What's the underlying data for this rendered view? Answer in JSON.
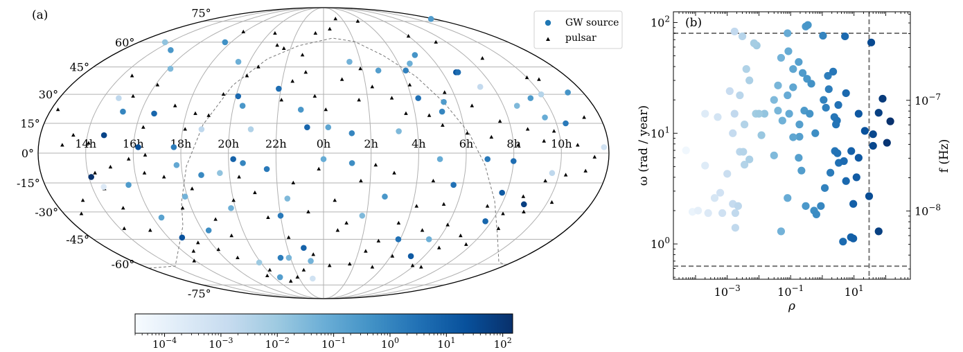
{
  "colors": {
    "cmap": [
      "#f7fbff",
      "#deebf7",
      "#c6dbef",
      "#9ecae1",
      "#6baed6",
      "#4292c6",
      "#2171b5",
      "#08519c",
      "#08306b"
    ],
    "grid": "#b0b0b0",
    "dashed": "#777777",
    "legend_dot": "#1f77b4"
  },
  "chart_data": [
    {
      "panel_label": "(a)",
      "type": "scatter",
      "projection": "mollweide",
      "longitude_ticks": [
        "14h",
        "16h",
        "18h",
        "20h",
        "22h",
        "0h",
        "2h",
        "4h",
        "6h",
        "8h",
        "10h"
      ],
      "latitude_ticks": [
        "75°",
        "60°",
        "45°",
        "30°",
        "15°",
        "0°",
        "-15°",
        "-30°",
        "-45°",
        "-60°",
        "-75°"
      ],
      "legend": [
        {
          "label": "GW source",
          "marker": "circle"
        },
        {
          "label": "pulsar",
          "marker": "triangle"
        }
      ],
      "colorbar": {
        "scale": "log",
        "range": [
          3e-05,
          150
        ],
        "ticks": [
          {
            "base": "10",
            "exp": "−4",
            "value": 0.0001
          },
          {
            "base": "10",
            "exp": "−3",
            "value": 0.001
          },
          {
            "base": "10",
            "exp": "−2",
            "value": 0.01
          },
          {
            "base": "10",
            "exp": "−1",
            "value": 0.1
          },
          {
            "base": "10",
            "exp": "0",
            "value": 1
          },
          {
            "base": "10",
            "exp": "1",
            "value": 10
          },
          {
            "base": "10",
            "exp": "2",
            "value": 100
          }
        ]
      },
      "gw_sources": [
        [
          11.7,
          77,
          -0.6
        ],
        [
          13.7,
          60,
          -1.8
        ],
        [
          14.9,
          55,
          -0.5
        ],
        [
          16.1,
          44,
          -1.5
        ],
        [
          17.6,
          60,
          -0.3
        ],
        [
          19.4,
          48,
          -1.2
        ],
        [
          21.9,
          33,
          0.6
        ],
        [
          1.4,
          48,
          -1.3
        ],
        [
          2.8,
          43,
          -0.7
        ],
        [
          4.2,
          43,
          0.1
        ],
        [
          4.6,
          47,
          -1.2
        ],
        [
          5.2,
          52,
          -0.4
        ],
        [
          6.7,
          42,
          1.2
        ],
        [
          7.4,
          34,
          -2.8
        ],
        [
          8.6,
          24,
          -1.5
        ],
        [
          9.4,
          28,
          -0.6
        ],
        [
          9.6,
          18,
          -1.1
        ],
        [
          10.4,
          15,
          0.3
        ],
        [
          11.8,
          3,
          -3.2
        ],
        [
          14.7,
          28,
          -2.7
        ],
        [
          15.2,
          21,
          0.0
        ],
        [
          16.6,
          20,
          0.8
        ],
        [
          16.2,
          3,
          1.4
        ],
        [
          15.6,
          -16,
          -0.6
        ],
        [
          14.1,
          -12,
          2.1
        ],
        [
          14.5,
          -17,
          -3.6
        ],
        [
          14.7,
          9,
          1.7
        ],
        [
          17.7,
          3,
          0.2
        ],
        [
          18.8,
          12,
          -2.7
        ],
        [
          20.1,
          29,
          0.7
        ],
        [
          20.4,
          24,
          -0.5
        ],
        [
          20.9,
          12,
          -2.4
        ],
        [
          23.0,
          22,
          -0.5
        ],
        [
          23.3,
          13,
          0.8
        ],
        [
          0.2,
          13,
          -0.9
        ],
        [
          1.2,
          10,
          0.0
        ],
        [
          3.2,
          11,
          -1.5
        ],
        [
          4.3,
          28,
          0.5
        ],
        [
          5.2,
          21,
          0.0
        ],
        [
          5.4,
          26,
          -0.6
        ],
        [
          4.9,
          -3,
          -1.1
        ],
        [
          5.6,
          -16,
          0.5
        ],
        [
          6.9,
          -3,
          0.3
        ],
        [
          8.0,
          -4,
          0.6
        ],
        [
          7.8,
          -20,
          1.1
        ],
        [
          9.0,
          -26,
          1.8
        ],
        [
          7.7,
          -35,
          0.8
        ],
        [
          5.5,
          -45,
          -1.2
        ],
        [
          3.9,
          -45,
          0.5
        ],
        [
          5.2,
          -55,
          1.1
        ],
        [
          2.7,
          -22,
          -0.5
        ],
        [
          1.2,
          -5,
          -0.2
        ],
        [
          0.0,
          -3,
          -1.1
        ],
        [
          22.4,
          -23,
          -1.5
        ],
        [
          22.0,
          -32,
          0.3
        ],
        [
          21.4,
          -56,
          0.2
        ],
        [
          21.9,
          -56,
          -1.4
        ],
        [
          22.9,
          -50,
          0.9
        ],
        [
          23.2,
          -58,
          -1.3
        ],
        [
          23.1,
          -70,
          -3.2
        ],
        [
          20.5,
          -69,
          -0.7
        ],
        [
          19.9,
          -59,
          -2.0
        ],
        [
          18.3,
          -40,
          -0.2
        ],
        [
          17.9,
          -22,
          -1.3
        ],
        [
          17.8,
          -6,
          -1.0
        ],
        [
          19.6,
          -10,
          -1.8
        ],
        [
          20.2,
          -3,
          0.9
        ],
        [
          20.6,
          -5,
          0.0
        ],
        [
          21.6,
          -8,
          0.3
        ],
        [
          18.8,
          -11,
          -0.1
        ],
        [
          16.4,
          -33,
          -0.8
        ],
        [
          16.7,
          -44,
          1.3
        ],
        [
          19.8,
          -28,
          -1.2
        ],
        [
          1.8,
          -32,
          -1.5
        ],
        [
          6.8,
          42,
          0.6
        ],
        [
          10.0,
          30,
          -2.5
        ],
        [
          11.3,
          31,
          -0.4
        ],
        [
          9.7,
          -10,
          -2.7
        ]
      ],
      "pulsars": [
        [
          17.9,
          67
        ],
        [
          20.4,
          66
        ],
        [
          23.4,
          66
        ],
        [
          0.5,
          69
        ],
        [
          1.3,
          77
        ],
        [
          3.4,
          75
        ],
        [
          6.0,
          64
        ],
        [
          7.3,
          60
        ],
        [
          8.8,
          50
        ],
        [
          10.0,
          39
        ],
        [
          10.5,
          38
        ],
        [
          11.3,
          18
        ],
        [
          12.3,
          22
        ],
        [
          13.0,
          4
        ],
        [
          13.4,
          9
        ],
        [
          14.1,
          5
        ],
        [
          15.3,
          29
        ],
        [
          16.3,
          13
        ],
        [
          17.4,
          24
        ],
        [
          18.1,
          12
        ],
        [
          19.0,
          19
        ],
        [
          19.4,
          30
        ],
        [
          20.2,
          40
        ],
        [
          20.6,
          45
        ],
        [
          21.1,
          58
        ],
        [
          21.6,
          56
        ],
        [
          22.1,
          27
        ],
        [
          22.5,
          37
        ],
        [
          23.1,
          42
        ],
        [
          23.6,
          29
        ],
        [
          0.1,
          22
        ],
        [
          0.9,
          38
        ],
        [
          1.6,
          27
        ],
        [
          2.3,
          34
        ],
        [
          3.1,
          28
        ],
        [
          3.6,
          20
        ],
        [
          4.1,
          35
        ],
        [
          4.6,
          19
        ],
        [
          5.1,
          14
        ],
        [
          5.6,
          31
        ],
        [
          6.1,
          10
        ],
        [
          6.6,
          24
        ],
        [
          7.1,
          8
        ],
        [
          7.6,
          16
        ],
        [
          8.2,
          4
        ],
        [
          8.7,
          12
        ],
        [
          9.3,
          6
        ],
        [
          9.8,
          11
        ],
        [
          10.7,
          4
        ],
        [
          11.4,
          -2
        ],
        [
          11.1,
          -9
        ],
        [
          10.3,
          -11
        ],
        [
          9.5,
          -14
        ],
        [
          8.8,
          -22
        ],
        [
          8.3,
          -31
        ],
        [
          7.4,
          -27
        ],
        [
          7.0,
          -43
        ],
        [
          6.4,
          -50
        ],
        [
          6.0,
          -37
        ],
        [
          5.4,
          -26
        ],
        [
          4.7,
          -14
        ],
        [
          4.2,
          -27
        ],
        [
          3.6,
          -36
        ],
        [
          2.9,
          -46
        ],
        [
          2.4,
          -52
        ],
        [
          1.7,
          -60
        ],
        [
          0.4,
          -61
        ],
        [
          23.4,
          -54
        ],
        [
          22.6,
          -64
        ],
        [
          21.9,
          -69
        ],
        [
          21.1,
          -72
        ],
        [
          20.2,
          -64
        ],
        [
          19.6,
          -68
        ],
        [
          18.8,
          -56
        ],
        [
          18.1,
          -51
        ],
        [
          17.3,
          -47
        ],
        [
          16.6,
          -52
        ],
        [
          15.9,
          -58
        ],
        [
          15.4,
          -40
        ],
        [
          14.9,
          -28
        ],
        [
          14.5,
          -18
        ],
        [
          14.3,
          -10
        ],
        [
          15.0,
          -7
        ],
        [
          15.8,
          -3
        ],
        [
          16.4,
          -10
        ],
        [
          17.2,
          -12
        ],
        [
          17.6,
          -28
        ],
        [
          18.3,
          -18
        ],
        [
          18.9,
          -34
        ],
        [
          19.3,
          -43
        ],
        [
          20.0,
          -24
        ],
        [
          20.4,
          -12
        ],
        [
          21.0,
          -20
        ],
        [
          21.4,
          -33
        ],
        [
          22.2,
          -44
        ],
        [
          22.7,
          -15
        ],
        [
          23.3,
          -30
        ],
        [
          23.8,
          -8
        ],
        [
          0.5,
          -24
        ],
        [
          1.1,
          -36
        ],
        [
          1.6,
          -14
        ],
        [
          2.2,
          -6
        ],
        [
          3.0,
          -10
        ],
        [
          3.3,
          -62
        ],
        [
          4.1,
          -55
        ],
        [
          4.9,
          -40
        ],
        [
          5.9,
          -61
        ],
        [
          6.6,
          -62
        ],
        [
          7.7,
          -48
        ],
        [
          8.6,
          -39
        ],
        [
          9.2,
          -30
        ],
        [
          10.2,
          -25
        ],
        [
          16.5,
          -1
        ],
        [
          14.2,
          -39
        ],
        [
          12.8,
          -31
        ],
        [
          13.3,
          -24
        ],
        [
          14.5,
          40
        ],
        [
          16.1,
          35
        ],
        [
          18.4,
          20
        ],
        [
          0.7,
          -40
        ],
        [
          22.8,
          52
        ],
        [
          1.9,
          44
        ]
      ]
    },
    {
      "panel_label": "(b)",
      "type": "scatter",
      "xlabel": "ρ",
      "ylabel": "ω (rad / year)",
      "y2label": "f (Hz)",
      "xscale": "log",
      "yscale": "log",
      "xlim": [
        2e-05,
        600
      ],
      "ylim": [
        0.48,
        125
      ],
      "xticks": [
        {
          "base": "10",
          "exp": "−3",
          "value": 0.001
        },
        {
          "base": "10",
          "exp": "−1",
          "value": 0.1
        },
        {
          "base": "10",
          "exp": "1",
          "value": 10
        }
      ],
      "yticks": [
        {
          "base": "10",
          "exp": "0",
          "value": 1
        },
        {
          "base": "10",
          "exp": "1",
          "value": 10
        },
        {
          "base": "10",
          "exp": "2",
          "value": 100
        }
      ],
      "y2ticks": [
        {
          "base": "10",
          "exp": "−8",
          "value": 1e-08
        },
        {
          "base": "10",
          "exp": "−7",
          "value": 1e-07
        }
      ],
      "hlines": [
        80,
        0.63
      ],
      "vlines": [
        30
      ],
      "points": [
        [
          0.0017,
          83
        ],
        [
          0.003,
          75
        ],
        [
          0.0085,
          62
        ],
        [
          0.007,
          65
        ],
        [
          0.08,
          80
        ],
        [
          0.3,
          92
        ],
        [
          0.35,
          95
        ],
        [
          1.05,
          76
        ],
        [
          5.2,
          75
        ],
        [
          35,
          66
        ],
        [
          0.004,
          38
        ],
        [
          0.005,
          30
        ],
        [
          0.0025,
          22
        ],
        [
          0.0017,
          15
        ],
        [
          0.0035,
          12
        ],
        [
          0.0012,
          24
        ],
        [
          0.05,
          48
        ],
        [
          0.085,
          55
        ],
        [
          0.12,
          38
        ],
        [
          0.18,
          44
        ],
        [
          0.24,
          35
        ],
        [
          0.33,
          31
        ],
        [
          0.12,
          26
        ],
        [
          0.04,
          27
        ],
        [
          0.08,
          22
        ],
        [
          0.03,
          20
        ],
        [
          0.015,
          15
        ],
        [
          0.04,
          16
        ],
        [
          0.055,
          13
        ],
        [
          0.09,
          15
        ],
        [
          0.27,
          16
        ],
        [
          0.45,
          28
        ],
        [
          1.1,
          20
        ],
        [
          1.5,
          33
        ],
        [
          2.2,
          36
        ],
        [
          1.6,
          25
        ],
        [
          3.2,
          18
        ],
        [
          2.4,
          14
        ],
        [
          2.9,
          13
        ],
        [
          5.6,
          23
        ],
        [
          0.008,
          15
        ],
        [
          0.01,
          15
        ],
        [
          0.012,
          9.6
        ],
        [
          0.0015,
          10
        ],
        [
          0.0005,
          14
        ],
        [
          0.0002,
          15
        ],
        [
          0.19,
          9.3
        ],
        [
          0.19,
          12
        ],
        [
          0.12,
          9.2
        ],
        [
          0.4,
          15
        ],
        [
          0.6,
          10
        ],
        [
          1.3,
          17
        ],
        [
          2.7,
          12
        ],
        [
          0.0025,
          6.8
        ],
        [
          0.0032,
          6.8
        ],
        [
          0.0035,
          5.2
        ],
        [
          0.005,
          5.8
        ],
        [
          0.001,
          4.3
        ],
        [
          0.0006,
          2.9
        ],
        [
          0.0004,
          2.6
        ],
        [
          0.0002,
          5.1
        ],
        [
          8e-05,
          1.95
        ],
        [
          0.00012,
          2.0
        ],
        [
          0.00025,
          1.9
        ],
        [
          0.0007,
          1.9
        ],
        [
          0.0015,
          2.3
        ],
        [
          0.0018,
          1.9
        ],
        [
          0.0022,
          2.2
        ],
        [
          0.0018,
          1.4
        ],
        [
          5e-05,
          7
        ],
        [
          0.03,
          6.3
        ],
        [
          0.18,
          6.0
        ],
        [
          0.05,
          1.3
        ],
        [
          0.08,
          2.6
        ],
        [
          0.22,
          4.6
        ],
        [
          0.3,
          2.2
        ],
        [
          0.55,
          2.0
        ],
        [
          0.65,
          1.85
        ],
        [
          0.9,
          2.2
        ],
        [
          1.2,
          3.2
        ],
        [
          1.8,
          4.4
        ],
        [
          2.5,
          6.9
        ],
        [
          3.0,
          6.6
        ],
        [
          3.3,
          5.4
        ],
        [
          4.8,
          5.6
        ],
        [
          5.6,
          3.7
        ],
        [
          8.2,
          6.9
        ],
        [
          14,
          6.0
        ],
        [
          4.5,
          1.05
        ],
        [
          8,
          1.15
        ],
        [
          9.5,
          1.12
        ],
        [
          12,
          4.0
        ],
        [
          9.5,
          2.3
        ],
        [
          22,
          10.5
        ],
        [
          30,
          2.7
        ],
        [
          40,
          7.7
        ],
        [
          60,
          1.3
        ],
        [
          80,
          20.5
        ],
        [
          140,
          12.8
        ],
        [
          60,
          15.3
        ],
        [
          110,
          8.2
        ],
        [
          14,
          15
        ],
        [
          40,
          9.8
        ]
      ]
    }
  ]
}
